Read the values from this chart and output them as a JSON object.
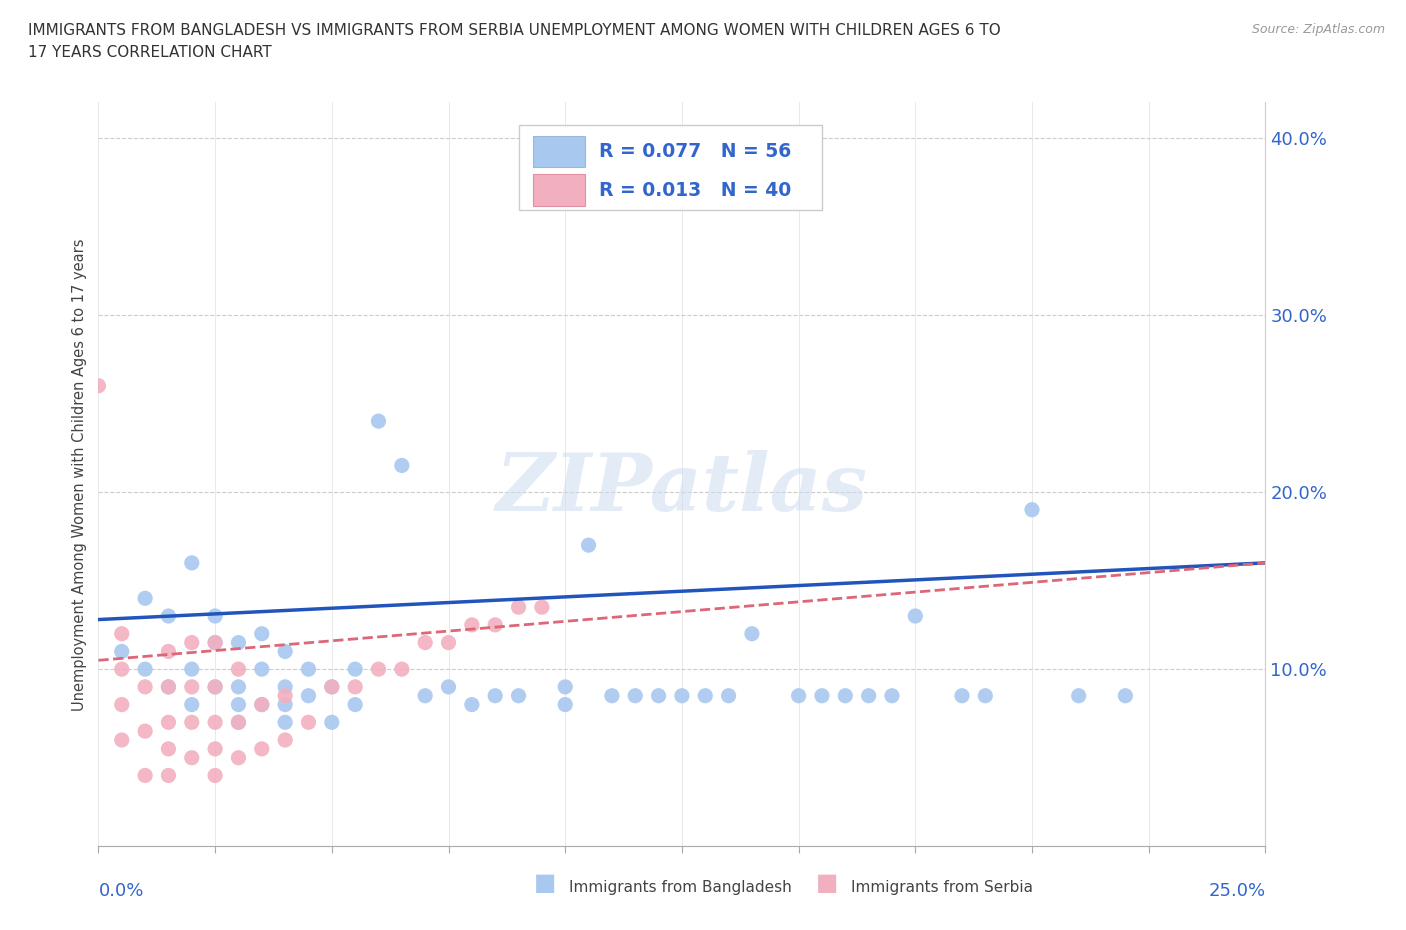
{
  "title_line1": "IMMIGRANTS FROM BANGLADESH VS IMMIGRANTS FROM SERBIA UNEMPLOYMENT AMONG WOMEN WITH CHILDREN AGES 6 TO",
  "title_line2": "17 YEARS CORRELATION CHART",
  "source": "Source: ZipAtlas.com",
  "ylabel": "Unemployment Among Women with Children Ages 6 to 17 years",
  "xlim": [
    0.0,
    0.25
  ],
  "ylim": [
    0.0,
    0.42
  ],
  "bangladesh_color": "#a8c8f0",
  "serbia_color": "#f2afc0",
  "bangladesh_line_color": "#2255bb",
  "serbia_line_color": "#dd6677",
  "watermark": "ZIPatlas",
  "bangladesh_x": [
    0.005,
    0.01,
    0.01,
    0.015,
    0.015,
    0.02,
    0.02,
    0.02,
    0.025,
    0.025,
    0.025,
    0.03,
    0.03,
    0.03,
    0.03,
    0.035,
    0.035,
    0.035,
    0.04,
    0.04,
    0.04,
    0.04,
    0.045,
    0.045,
    0.05,
    0.05,
    0.055,
    0.055,
    0.06,
    0.065,
    0.07,
    0.075,
    0.08,
    0.085,
    0.09,
    0.1,
    0.1,
    0.105,
    0.11,
    0.115,
    0.12,
    0.125,
    0.13,
    0.135,
    0.14,
    0.15,
    0.155,
    0.16,
    0.165,
    0.17,
    0.175,
    0.185,
    0.19,
    0.2,
    0.21,
    0.22
  ],
  "bangladesh_y": [
    0.11,
    0.1,
    0.14,
    0.09,
    0.13,
    0.08,
    0.1,
    0.16,
    0.09,
    0.115,
    0.13,
    0.07,
    0.08,
    0.09,
    0.115,
    0.08,
    0.1,
    0.12,
    0.07,
    0.08,
    0.09,
    0.11,
    0.085,
    0.1,
    0.07,
    0.09,
    0.08,
    0.1,
    0.24,
    0.215,
    0.085,
    0.09,
    0.08,
    0.085,
    0.085,
    0.09,
    0.08,
    0.17,
    0.085,
    0.085,
    0.085,
    0.085,
    0.085,
    0.085,
    0.12,
    0.085,
    0.085,
    0.085,
    0.085,
    0.085,
    0.13,
    0.085,
    0.085,
    0.19,
    0.085,
    0.085
  ],
  "serbia_x": [
    0.0,
    0.005,
    0.005,
    0.005,
    0.005,
    0.01,
    0.01,
    0.01,
    0.015,
    0.015,
    0.015,
    0.015,
    0.015,
    0.02,
    0.02,
    0.02,
    0.02,
    0.025,
    0.025,
    0.025,
    0.025,
    0.025,
    0.03,
    0.03,
    0.03,
    0.035,
    0.035,
    0.04,
    0.04,
    0.045,
    0.05,
    0.055,
    0.06,
    0.065,
    0.07,
    0.075,
    0.08,
    0.085,
    0.09,
    0.095
  ],
  "serbia_y": [
    0.26,
    0.06,
    0.08,
    0.1,
    0.12,
    0.04,
    0.065,
    0.09,
    0.04,
    0.055,
    0.07,
    0.09,
    0.11,
    0.05,
    0.07,
    0.09,
    0.115,
    0.04,
    0.055,
    0.07,
    0.09,
    0.115,
    0.05,
    0.07,
    0.1,
    0.055,
    0.08,
    0.06,
    0.085,
    0.07,
    0.09,
    0.09,
    0.1,
    0.1,
    0.115,
    0.115,
    0.125,
    0.125,
    0.135,
    0.135
  ],
  "legend_r1_label": "R = 0.077   N = 56",
  "legend_r2_label": "R = 0.013   N = 40",
  "legend_r_color": "#3366cc",
  "bottom_legend_bangladesh": "Immigrants from Bangladesh",
  "bottom_legend_serbia": "Immigrants from Serbia",
  "ytick_vals": [
    0.0,
    0.1,
    0.2,
    0.3,
    0.4
  ],
  "ytick_labels_right": [
    "",
    "10.0%",
    "20.0%",
    "30.0%",
    "40.0%"
  ]
}
